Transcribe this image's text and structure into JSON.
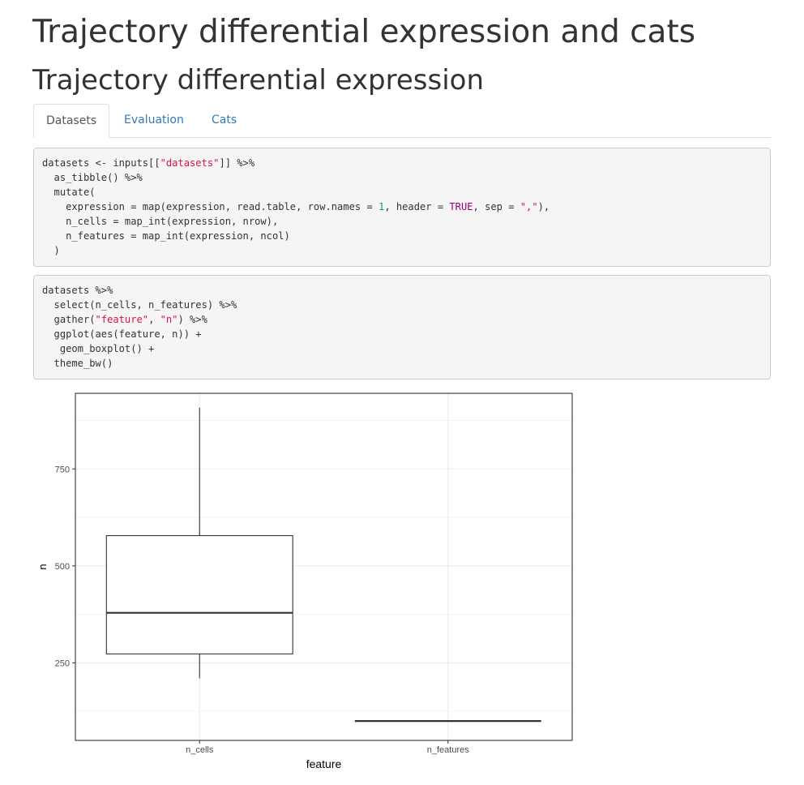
{
  "page": {
    "title": "Trajectory differential expression and cats",
    "subtitle": "Trajectory differential expression"
  },
  "tabs": [
    {
      "label": "Datasets",
      "active": true
    },
    {
      "label": "Evaluation",
      "active": false
    },
    {
      "label": "Cats",
      "active": false
    }
  ],
  "code_blocks": [
    {
      "lines": [
        [
          {
            "t": "datasets <- inputs[["
          },
          {
            "t": "\"datasets\"",
            "c": "s"
          },
          {
            "t": "]] %>%"
          }
        ],
        [
          {
            "t": "  as_tibble() %>%"
          }
        ],
        [
          {
            "t": "  mutate("
          }
        ],
        [
          {
            "t": "    expression = map(expression, read.table, row.names = "
          },
          {
            "t": "1",
            "c": "n"
          },
          {
            "t": ", header = "
          },
          {
            "t": "TRUE",
            "c": "k"
          },
          {
            "t": ", sep = "
          },
          {
            "t": "\",\"",
            "c": "s"
          },
          {
            "t": "),"
          }
        ],
        [
          {
            "t": "    n_cells = map_int(expression, nrow),"
          }
        ],
        [
          {
            "t": "    n_features = map_int(expression, ncol)"
          }
        ],
        [
          {
            "t": "  )"
          }
        ]
      ]
    },
    {
      "lines": [
        [
          {
            "t": "datasets %>%"
          }
        ],
        [
          {
            "t": "  select(n_cells, n_features) %>%"
          }
        ],
        [
          {
            "t": "  gather("
          },
          {
            "t": "\"feature\"",
            "c": "s"
          },
          {
            "t": ", "
          },
          {
            "t": "\"n\"",
            "c": "s"
          },
          {
            "t": ") %>%"
          }
        ],
        [
          {
            "t": "  ggplot(aes(feature, n)) +"
          }
        ],
        [
          {
            "t": "   geom_boxplot() +"
          }
        ],
        [
          {
            "t": "  theme_bw()"
          }
        ]
      ]
    }
  ],
  "chart_data": {
    "type": "boxplot",
    "xlabel": "feature",
    "ylabel": "n",
    "categories": [
      "n_cells",
      "n_features"
    ],
    "ylim": [
      50,
      945
    ],
    "yticks": [
      250,
      500,
      750
    ],
    "grid": true,
    "theme": "bw",
    "boxes": [
      {
        "category": "n_cells",
        "min": 210,
        "q1": 273,
        "median": 379,
        "q3": 578,
        "max": 908
      },
      {
        "category": "n_features",
        "min": 100,
        "q1": 100,
        "median": 100,
        "q3": 100,
        "max": 100
      }
    ],
    "colors": {
      "panel_border": "#333333",
      "grid": "#ebebeb",
      "box": "#333333"
    }
  }
}
